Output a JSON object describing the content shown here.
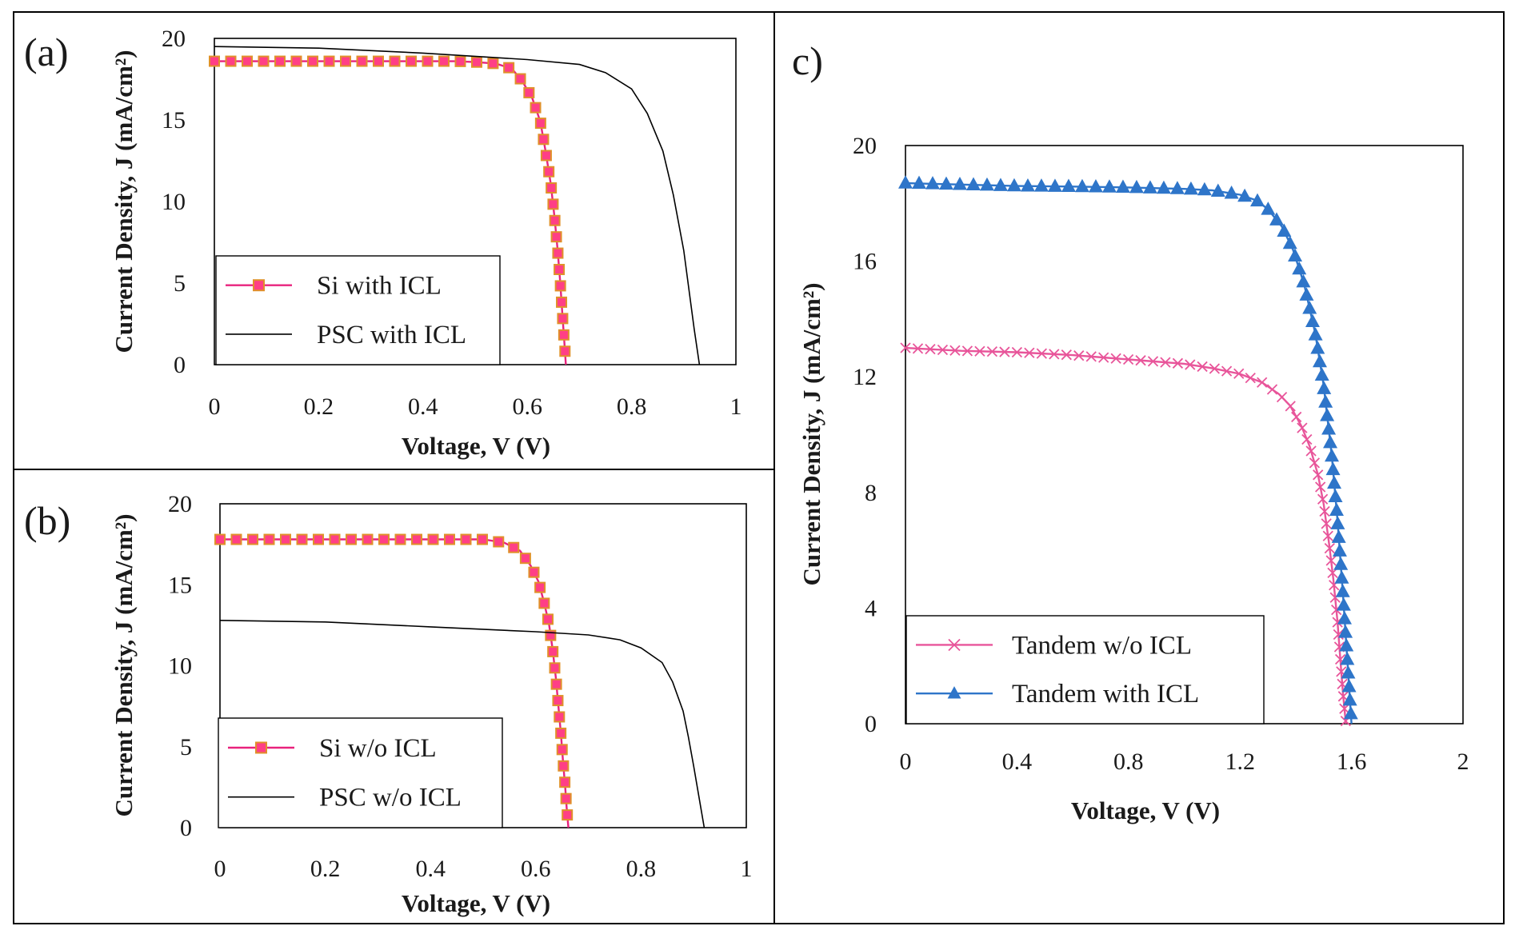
{
  "chart_data": [
    {
      "type": "line",
      "panel_label": "(a)",
      "xlabel": "Voltage, V (V)",
      "ylabel": "Current  Density, J (mA/cm²)",
      "xlim": [
        0,
        1
      ],
      "ylim": [
        0,
        20
      ],
      "xticks": [
        "0",
        "0.2",
        "0.4",
        "0.6",
        "0.8",
        "1"
      ],
      "yticks": [
        "0",
        "5",
        "10",
        "15",
        "20"
      ],
      "grid": false,
      "legend_position": "bottom-left",
      "series": [
        {
          "name": "Si with  ICL",
          "color": "#e8227d",
          "marker": "square",
          "x": [
            0.0,
            0.1,
            0.2,
            0.3,
            0.4,
            0.46,
            0.5,
            0.54,
            0.57,
            0.59,
            0.61,
            0.625,
            0.635,
            0.645,
            0.652,
            0.658,
            0.663,
            0.667,
            0.671,
            0.674
          ],
          "y": [
            18.6,
            18.6,
            18.6,
            18.6,
            18.6,
            18.6,
            18.55,
            18.45,
            18.15,
            17.4,
            16.3,
            14.9,
            13.1,
            11.1,
            9.1,
            7.1,
            5.1,
            3.2,
            1.4,
            0.0
          ]
        },
        {
          "name": "PSC with  ICL",
          "color": "#000000",
          "marker": "none",
          "x": [
            0.0,
            0.2,
            0.4,
            0.6,
            0.7,
            0.75,
            0.8,
            0.83,
            0.86,
            0.88,
            0.9,
            0.91,
            0.92,
            0.93
          ],
          "y": [
            19.5,
            19.4,
            19.1,
            18.7,
            18.4,
            17.9,
            16.9,
            15.4,
            13.1,
            10.4,
            7.0,
            4.6,
            2.2,
            0.0
          ]
        }
      ]
    },
    {
      "type": "line",
      "panel_label": "(b)",
      "xlabel": "Voltage, V (V)",
      "ylabel": "Current  Density, J (mA/cm²)",
      "xlim": [
        0,
        1
      ],
      "ylim": [
        0,
        20
      ],
      "xticks": [
        "0",
        "0.2",
        "0.4",
        "0.6",
        "0.8",
        "1"
      ],
      "yticks": [
        "0",
        "5",
        "10",
        "15",
        "20"
      ],
      "grid": false,
      "legend_position": "bottom-left",
      "series": [
        {
          "name": "Si w/o ICL",
          "color": "#e8227d",
          "marker": "square",
          "x": [
            0.0,
            0.1,
            0.2,
            0.3,
            0.4,
            0.5,
            0.54,
            0.57,
            0.59,
            0.605,
            0.615,
            0.625,
            0.632,
            0.638,
            0.643,
            0.648,
            0.652,
            0.656,
            0.659,
            0.662
          ],
          "y": [
            17.8,
            17.8,
            17.8,
            17.8,
            17.8,
            17.8,
            17.6,
            17.1,
            16.2,
            15.2,
            14.0,
            12.6,
            11.0,
            9.3,
            7.5,
            5.7,
            4.0,
            2.5,
            1.1,
            0.0
          ]
        },
        {
          "name": "PSC w/o ICL",
          "color": "#000000",
          "marker": "none",
          "x": [
            0.0,
            0.2,
            0.4,
            0.6,
            0.7,
            0.76,
            0.8,
            0.84,
            0.86,
            0.88,
            0.89,
            0.9,
            0.91,
            0.92
          ],
          "y": [
            12.8,
            12.7,
            12.4,
            12.1,
            11.9,
            11.6,
            11.1,
            10.2,
            9.0,
            7.2,
            5.6,
            3.8,
            1.9,
            0.0
          ]
        }
      ]
    },
    {
      "type": "line",
      "panel_label": "c)",
      "xlabel": "Voltage, V (V)",
      "ylabel": "Current  Density, J (mA/cm²)",
      "xlim": [
        0,
        2
      ],
      "ylim": [
        0,
        20
      ],
      "xticks": [
        "0",
        "0.4",
        "0.8",
        "1.2",
        "1.6",
        "2"
      ],
      "yticks": [
        "0",
        "4",
        "8",
        "12",
        "16",
        "20"
      ],
      "grid": false,
      "legend_position": "bottom-left",
      "series": [
        {
          "name": "Tandem  w/o ICL",
          "color": "#e8559a",
          "marker": "x",
          "x": [
            0.0,
            0.2,
            0.4,
            0.6,
            0.8,
            1.0,
            1.1,
            1.2,
            1.28,
            1.34,
            1.38,
            1.42,
            1.45,
            1.48,
            1.5,
            1.52,
            1.535,
            1.55,
            1.56,
            1.57,
            1.58
          ],
          "y": [
            13.0,
            12.9,
            12.85,
            12.75,
            12.6,
            12.45,
            12.3,
            12.1,
            11.8,
            11.4,
            11.0,
            10.3,
            9.6,
            8.6,
            7.6,
            6.2,
            5.0,
            3.5,
            2.2,
            1.0,
            0.0
          ]
        },
        {
          "name": "Tandem  with ICL",
          "color": "#2e75c9",
          "marker": "triangle",
          "x": [
            0.0,
            0.2,
            0.4,
            0.6,
            0.8,
            1.0,
            1.1,
            1.2,
            1.26,
            1.3,
            1.35,
            1.39,
            1.43,
            1.47,
            1.5,
            1.53,
            1.55,
            1.57,
            1.585,
            1.6
          ],
          "y": [
            18.7,
            18.65,
            18.6,
            18.58,
            18.55,
            18.5,
            18.45,
            18.3,
            18.1,
            17.8,
            17.2,
            16.4,
            15.2,
            13.5,
            11.7,
            9.2,
            7.0,
            4.4,
            2.2,
            0.0
          ]
        }
      ]
    }
  ]
}
